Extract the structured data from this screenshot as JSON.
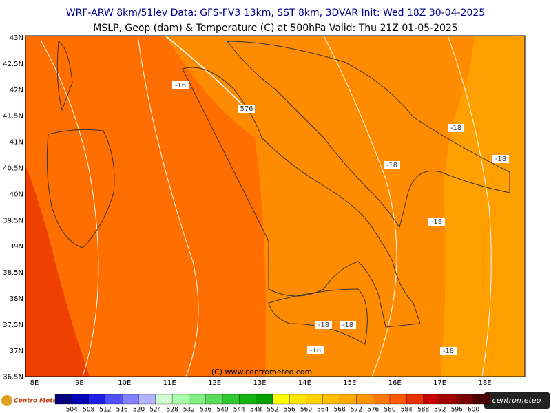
{
  "header": {
    "line1": "WRF-ARW 8km/51lev  Data: GFS-FV3 13km, SST 8km, 3DVAR  Init: Wed 18Z 30-04-2025",
    "line2": "MSLP, Geop (dam) & Temperature (C) at 500hPa  Valid: Thu 21Z 01-05-2025"
  },
  "lat_labels": [
    "43N",
    "42.5N",
    "42N",
    "41.5N",
    "41N",
    "40.5N",
    "40N",
    "39.5N",
    "39N",
    "38.5N",
    "38N",
    "37.5N",
    "37N",
    "36.5N"
  ],
  "lon_labels": [
    "8E",
    "9E",
    "10E",
    "11E",
    "12E",
    "13E",
    "14E",
    "15E",
    "16E",
    "17E",
    "18E"
  ],
  "contour_labels": [
    "-16",
    "576",
    "-18",
    "-18",
    "-18",
    "-18",
    "-18",
    "-18",
    "-18",
    "-18"
  ],
  "copyright": "(C) www.centrometeo.com",
  "legend": {
    "labels": [
      "504",
      "508",
      "512",
      "516",
      "520",
      "524",
      "528",
      "532",
      "536",
      "540",
      "544",
      "548",
      "552",
      "556",
      "560",
      "564",
      "568",
      "572",
      "576",
      "580",
      "584",
      "588",
      "592",
      "596",
      "600"
    ],
    "colors": [
      "#00007a",
      "#0000b4",
      "#1e1ee6",
      "#5050ff",
      "#8282ff",
      "#b4b4ff",
      "#d2ffd2",
      "#aaffaa",
      "#82f082",
      "#5adc5a",
      "#32c832",
      "#14b414",
      "#00a000",
      "#ffff00",
      "#ffe600",
      "#ffd200",
      "#ffbe00",
      "#ffaa00",
      "#ff9600",
      "#ff7800",
      "#ff5a00",
      "#e63200",
      "#c80000",
      "#a00000",
      "#780000",
      "#4b0000"
    ]
  },
  "logos": {
    "left": "Centro Meteo Aquileia",
    "right": "centrometeo"
  }
}
